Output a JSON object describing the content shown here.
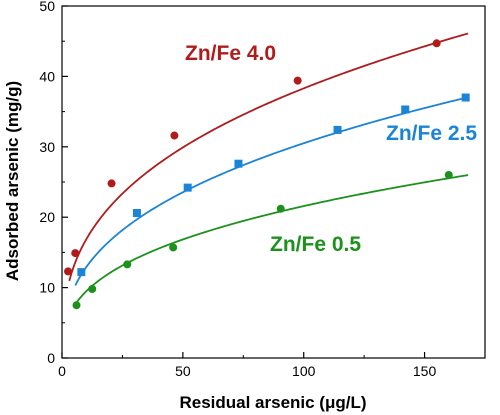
{
  "chart_data": {
    "type": "scatter",
    "xlabel": "Residual arsenic (μg/L)",
    "ylabel": "Adsorbed arsenic (mg/g)",
    "xlim": [
      0,
      175
    ],
    "ylim": [
      0,
      50
    ],
    "xticks": [
      0,
      50,
      100,
      150
    ],
    "yticks": [
      0,
      10,
      20,
      30,
      40,
      50
    ],
    "grid": false,
    "legend": "inline labels beside each curve",
    "series": [
      {
        "name": "Zn/Fe 4.0",
        "color": "#b01c1c",
        "marker": "circle",
        "x": [
          2.5,
          5.5,
          20.5,
          46.5,
          97.5,
          155
        ],
        "y": [
          12.3,
          14.9,
          24.8,
          31.6,
          39.4,
          44.7
        ],
        "fit": {
          "model": "freundlich",
          "K": 7.4,
          "n": 0.357,
          "x_range": [
            3,
            168
          ]
        }
      },
      {
        "name": "Zn/Fe 2.5",
        "color": "#1b84d6",
        "marker": "square",
        "x": [
          8,
          31,
          52,
          73,
          114,
          142,
          167
        ],
        "y": [
          12.2,
          20.6,
          24.2,
          27.6,
          32.4,
          35.3,
          37.0
        ],
        "fit": {
          "model": "freundlich",
          "K": 5.45,
          "n": 0.374,
          "x_range": [
            5.5,
            168
          ]
        }
      },
      {
        "name": "Zn/Fe 0.5",
        "color": "#1c911c",
        "marker": "circle",
        "x": [
          6,
          12.5,
          27,
          46,
          90.5,
          160
        ],
        "y": [
          7.5,
          9.8,
          13.3,
          15.7,
          21.2,
          26.0
        ],
        "fit": {
          "model": "freundlich",
          "K": 4.15,
          "n": 0.358,
          "x_range": [
            5,
            168
          ]
        }
      }
    ]
  }
}
